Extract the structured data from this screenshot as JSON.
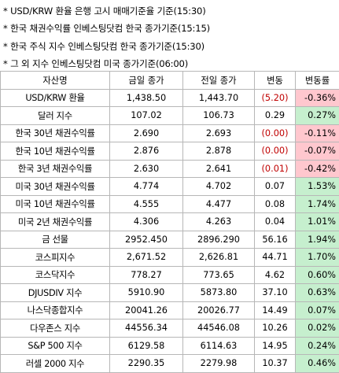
{
  "notes": [
    "* USD/KRW 환율 은행 고시 매매기준율 기준(15:30)",
    "* 한국 채권수익률 인베스팅닷컴 한국 종가기준(15:15)",
    "* 한국 주식 지수 인베스팅닷컴 한국 종가기준(15:30)",
    "* 그 외 지수 인베스팅닷컴 미국 종가기준(06:00)"
  ],
  "table": {
    "headers": [
      "자산명",
      "금일 종가",
      "전일 종가",
      "변동",
      "변동률"
    ],
    "rows": [
      {
        "name": "USD/KRW 환율",
        "today": "1,438.50",
        "prev": "1,443.70",
        "chg": "(5.20)",
        "pct": "-0.36%",
        "dir": "down"
      },
      {
        "name": "달러 지수",
        "today": "107.02",
        "prev": "106.73",
        "chg": "0.29",
        "pct": "0.27%",
        "dir": "up"
      },
      {
        "name": "한국 30년 채권수익률",
        "today": "2.690",
        "prev": "2.693",
        "chg": "(0.00)",
        "pct": "-0.11%",
        "dir": "down"
      },
      {
        "name": "한국 10년 채권수익률",
        "today": "2.876",
        "prev": "2.878",
        "chg": "(0.00)",
        "pct": "-0.07%",
        "dir": "down"
      },
      {
        "name": "한국 3년 채권수익률",
        "today": "2.630",
        "prev": "2.641",
        "chg": "(0.01)",
        "pct": "-0.42%",
        "dir": "down"
      },
      {
        "name": "미국 30년 채권수익률",
        "today": "4.774",
        "prev": "4.702",
        "chg": "0.07",
        "pct": "1.53%",
        "dir": "up"
      },
      {
        "name": "미국 10년 채권수익률",
        "today": "4.555",
        "prev": "4.477",
        "chg": "0.08",
        "pct": "1.74%",
        "dir": "up"
      },
      {
        "name": "미국 2년 채권수익률",
        "today": "4.306",
        "prev": "4.263",
        "chg": "0.04",
        "pct": "1.01%",
        "dir": "up"
      },
      {
        "name": "금 선물",
        "today": "2952.450",
        "prev": "2896.290",
        "chg": "56.16",
        "pct": "1.94%",
        "dir": "up"
      },
      {
        "name": "코스피지수",
        "today": "2,671.52",
        "prev": "2,626.81",
        "chg": "44.71",
        "pct": "1.70%",
        "dir": "up"
      },
      {
        "name": "코스닥지수",
        "today": "778.27",
        "prev": "773.65",
        "chg": "4.62",
        "pct": "0.60%",
        "dir": "up"
      },
      {
        "name": "DJUSDIV 지수",
        "today": "5910.90",
        "prev": "5873.80",
        "chg": "37.10",
        "pct": "0.63%",
        "dir": "up"
      },
      {
        "name": "나스닥종합지수",
        "today": "20041.26",
        "prev": "20026.77",
        "chg": "14.49",
        "pct": "0.07%",
        "dir": "up"
      },
      {
        "name": "다우존스 지수",
        "today": "44556.34",
        "prev": "44546.08",
        "chg": "10.26",
        "pct": "0.02%",
        "dir": "up"
      },
      {
        "name": "S&P 500 지수",
        "today": "6129.58",
        "prev": "6114.63",
        "chg": "14.95",
        "pct": "0.24%",
        "dir": "up"
      },
      {
        "name": "러셀 2000 지수",
        "today": "2290.35",
        "prev": "2279.98",
        "chg": "10.37",
        "pct": "0.46%",
        "dir": "up"
      }
    ]
  }
}
